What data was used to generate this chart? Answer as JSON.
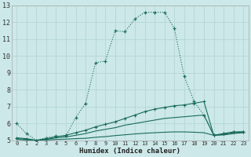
{
  "xlabel": "Humidex (Indice chaleur)",
  "bg_color": "#cce8e8",
  "grid_color": "#b8d8d8",
  "line_color": "#1a6b5a",
  "xlim": [
    -0.5,
    23.5
  ],
  "ylim": [
    5,
    13
  ],
  "xticks": [
    0,
    1,
    2,
    3,
    4,
    5,
    6,
    7,
    8,
    9,
    10,
    11,
    12,
    13,
    14,
    15,
    16,
    17,
    18,
    19,
    20,
    21,
    22,
    23
  ],
  "yticks": [
    5,
    6,
    7,
    8,
    9,
    10,
    11,
    12,
    13
  ],
  "line1_x": [
    0,
    1,
    2,
    3,
    4,
    5,
    6,
    7,
    8,
    9,
    10,
    11,
    12,
    13,
    14,
    15,
    16,
    17,
    18,
    19,
    20,
    21,
    22,
    23
  ],
  "line1_y": [
    6.0,
    5.4,
    5.0,
    5.15,
    5.25,
    5.25,
    6.35,
    7.2,
    9.6,
    9.7,
    11.5,
    11.45,
    12.2,
    12.6,
    12.6,
    12.6,
    11.65,
    8.8,
    7.3,
    6.5,
    5.3,
    5.4,
    5.5,
    5.5
  ],
  "line2_x": [
    0,
    1,
    2,
    3,
    4,
    5,
    6,
    7,
    8,
    9,
    10,
    11,
    12,
    13,
    14,
    15,
    16,
    17,
    18,
    19,
    20,
    21,
    22,
    23
  ],
  "line2_y": [
    5.15,
    5.1,
    5.0,
    5.1,
    5.2,
    5.3,
    5.45,
    5.6,
    5.8,
    5.95,
    6.1,
    6.3,
    6.5,
    6.7,
    6.85,
    6.95,
    7.05,
    7.1,
    7.2,
    7.3,
    5.3,
    5.4,
    5.5,
    5.5
  ],
  "line3_x": [
    0,
    1,
    2,
    3,
    4,
    5,
    6,
    7,
    8,
    9,
    10,
    11,
    12,
    13,
    14,
    15,
    16,
    17,
    18,
    19,
    20,
    21,
    22,
    23
  ],
  "line3_y": [
    5.1,
    5.05,
    5.0,
    5.05,
    5.15,
    5.2,
    5.3,
    5.4,
    5.55,
    5.65,
    5.75,
    5.9,
    6.0,
    6.1,
    6.2,
    6.3,
    6.35,
    6.4,
    6.45,
    6.5,
    5.3,
    5.35,
    5.45,
    5.5
  ],
  "line4_x": [
    0,
    1,
    2,
    3,
    4,
    5,
    6,
    7,
    8,
    9,
    10,
    11,
    12,
    13,
    14,
    15,
    16,
    17,
    18,
    19,
    20,
    21,
    22,
    23
  ],
  "line4_y": [
    5.05,
    5.02,
    5.0,
    5.02,
    5.05,
    5.07,
    5.1,
    5.12,
    5.18,
    5.22,
    5.28,
    5.33,
    5.38,
    5.42,
    5.45,
    5.48,
    5.5,
    5.5,
    5.48,
    5.45,
    5.3,
    5.32,
    5.4,
    5.45
  ]
}
